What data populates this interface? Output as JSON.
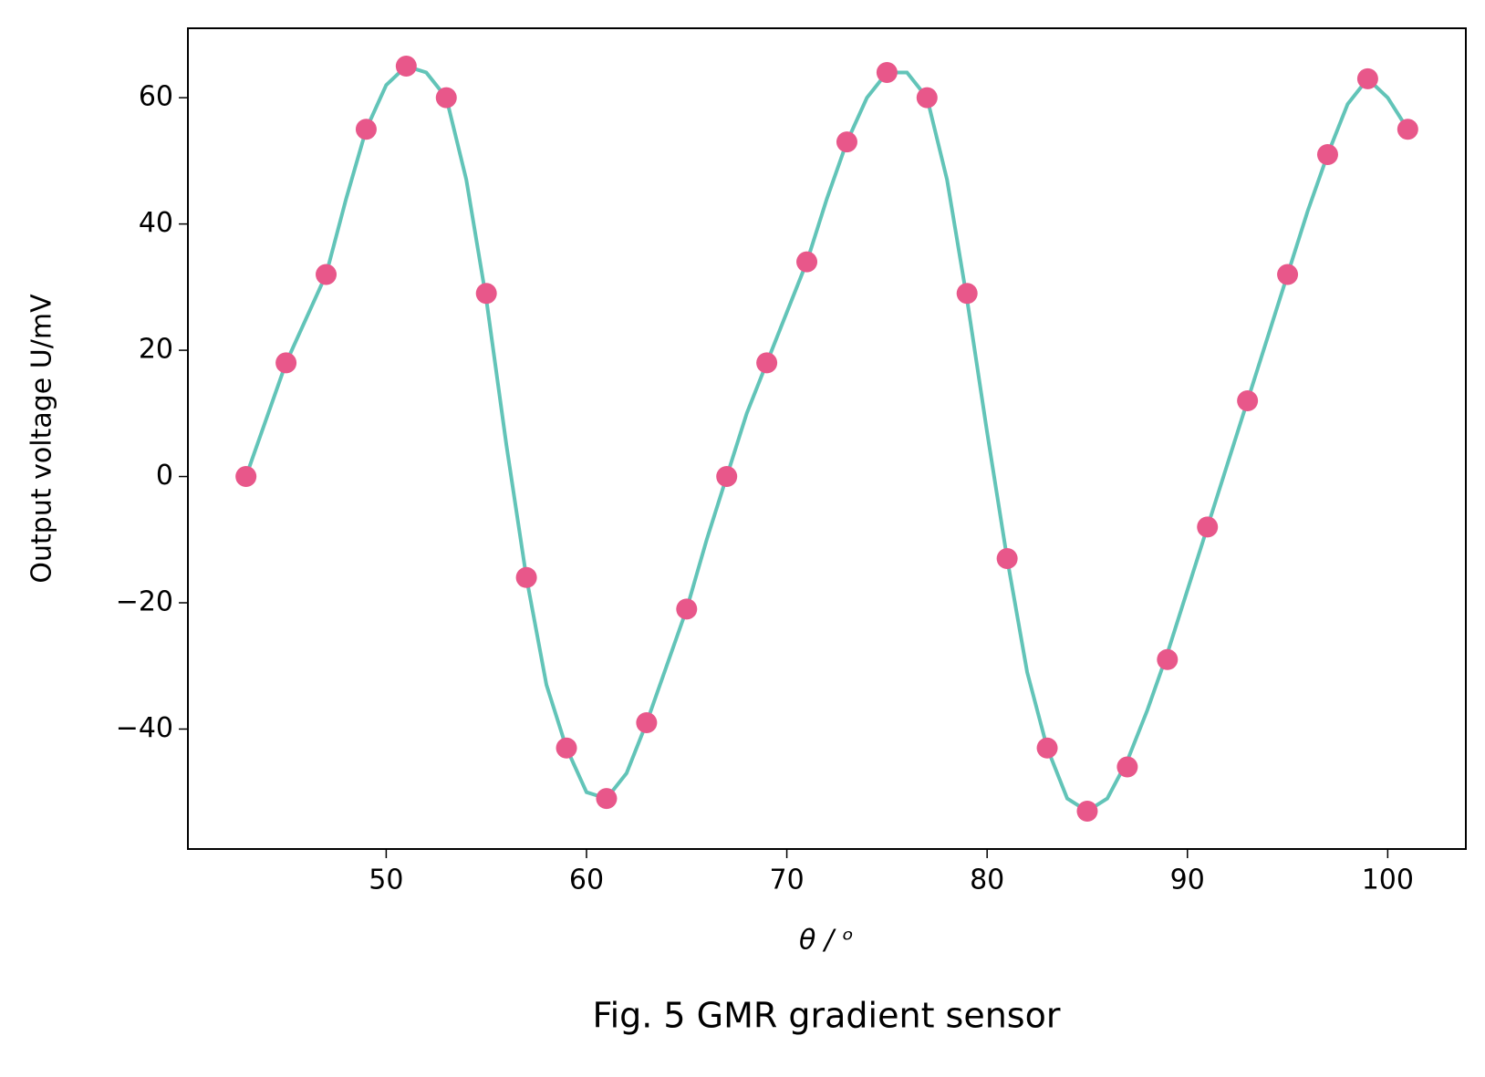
{
  "chart_data": {
    "type": "scatter",
    "caption": "Fig. 5 GMR gradient sensor",
    "x_label": "θ / ᵒ",
    "y_label": "Output voltage U/mV",
    "xlim": [
      40.1,
      103.9
    ],
    "xticks": [
      50,
      60,
      70,
      80,
      90,
      100
    ],
    "ylim": [
      -59,
      71
    ],
    "yticks": [
      {
        "value": -40,
        "label": "−40"
      },
      {
        "value": -20,
        "label": "−20"
      },
      0,
      20,
      40,
      60
    ],
    "series": [
      {
        "mode": "line",
        "color": "#62c4b8",
        "x": [
          43,
          44,
          45,
          46,
          47,
          48,
          49,
          50,
          51,
          52,
          53,
          54,
          55,
          56,
          57,
          58,
          59,
          60,
          61,
          62,
          63,
          64,
          65,
          66,
          67,
          68,
          69,
          70,
          71,
          72,
          73,
          74,
          75,
          76,
          77,
          78,
          79,
          80,
          81,
          82,
          83,
          84,
          85,
          86,
          87,
          88,
          89,
          90,
          91,
          92,
          93,
          94,
          95,
          96,
          97,
          98,
          99,
          100,
          101
        ],
        "values": [
          0,
          9,
          18,
          25,
          32,
          44,
          55,
          62,
          65,
          64,
          60,
          47,
          28,
          5,
          -16,
          -33,
          -43,
          -50,
          -51,
          -47,
          -39,
          -30,
          -21,
          -10,
          0,
          10,
          18,
          26,
          34,
          44,
          53,
          60,
          64,
          64,
          60,
          47,
          28,
          7,
          -13,
          -31,
          -43,
          -51,
          -53,
          -51,
          -45,
          -37,
          -28,
          -18,
          -8,
          2,
          12,
          22,
          32,
          42,
          51,
          59,
          63,
          60,
          55
        ]
      },
      {
        "mode": "marker",
        "color": "#e8578a",
        "x": [
          43,
          45,
          47,
          49,
          51,
          53,
          55,
          57,
          59,
          61,
          63,
          65,
          67,
          69,
          71,
          73,
          75,
          77,
          79,
          81,
          83,
          85,
          87,
          89,
          91,
          93,
          95,
          97,
          99,
          101
        ],
        "values": [
          0,
          18,
          32,
          55,
          65,
          60,
          29,
          -16,
          -43,
          -51,
          -39,
          -21,
          0,
          18,
          34,
          53,
          64,
          60,
          29,
          -13,
          -43,
          -53,
          -46,
          -29,
          -8,
          12,
          32,
          51,
          63,
          55
        ]
      }
    ]
  }
}
